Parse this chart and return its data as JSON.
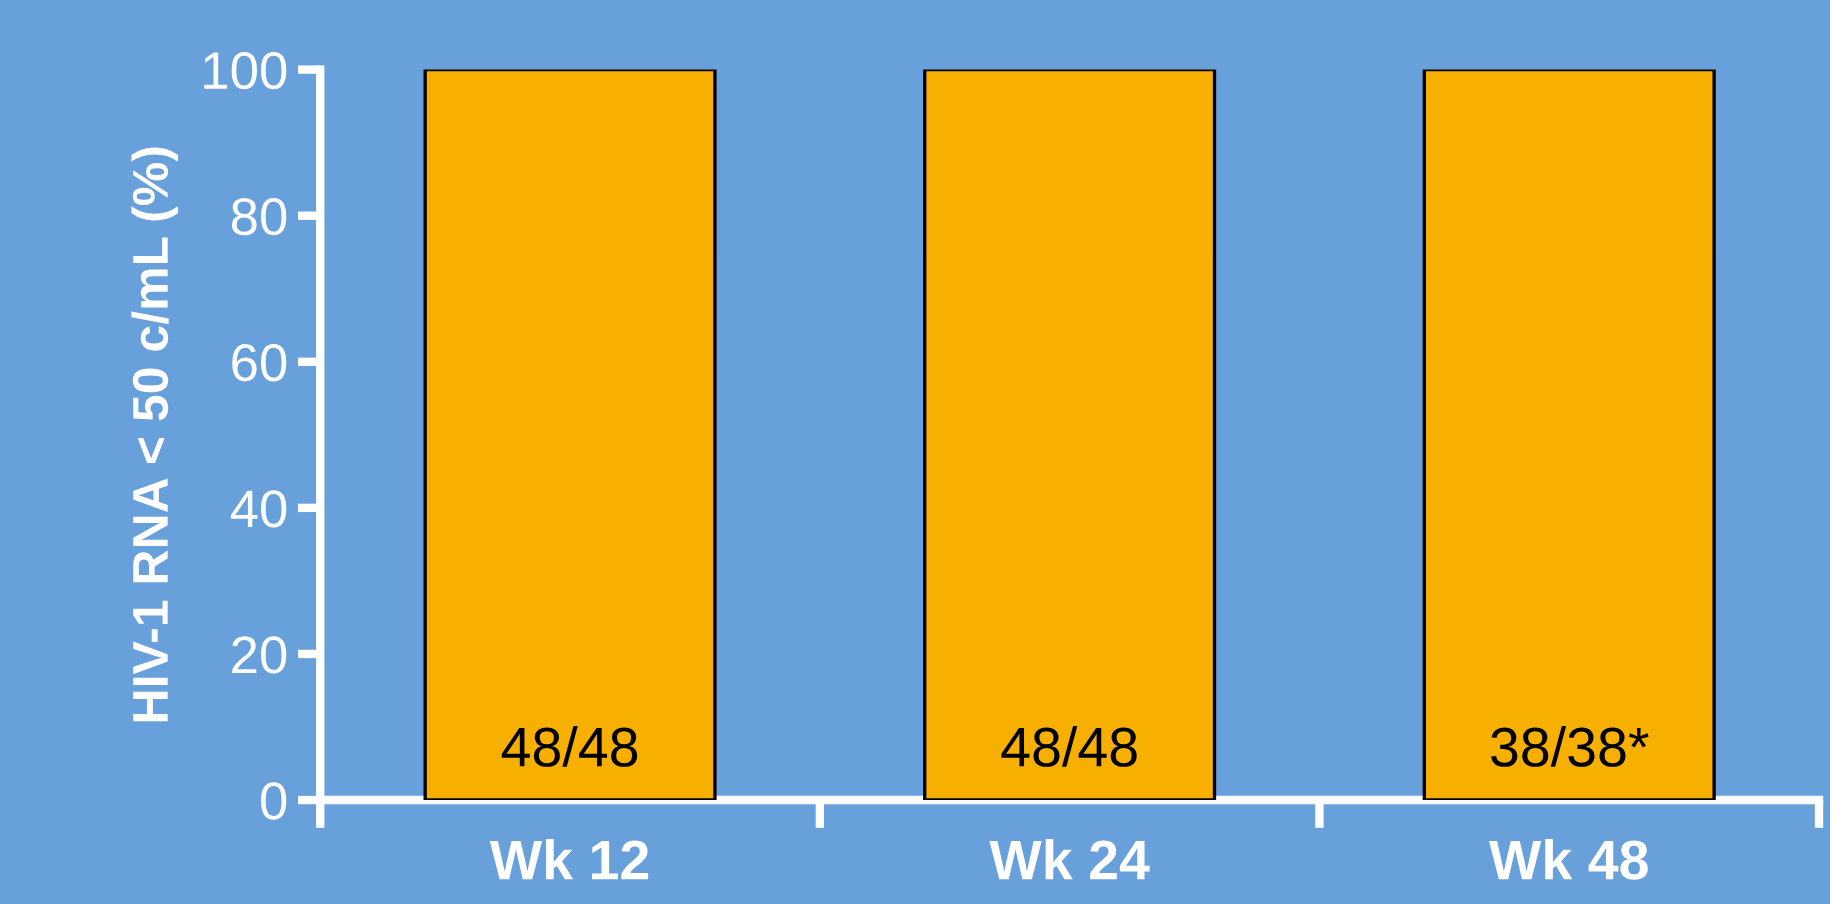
{
  "chart_data": {
    "type": "bar",
    "ylabel": "HIV-1 RNA < 50 c/mL (%)",
    "categories": [
      "Wk 12",
      "Wk 24",
      "Wk 48"
    ],
    "values": [
      100,
      100,
      100
    ],
    "color": "#f8b000",
    "value_labels": [
      "48/48",
      "48/48",
      "38/38*"
    ],
    "ylim": [
      0,
      100
    ],
    "yticks": [
      0,
      20,
      40,
      60,
      80,
      100
    ],
    "grid": false,
    "legend": false
  }
}
